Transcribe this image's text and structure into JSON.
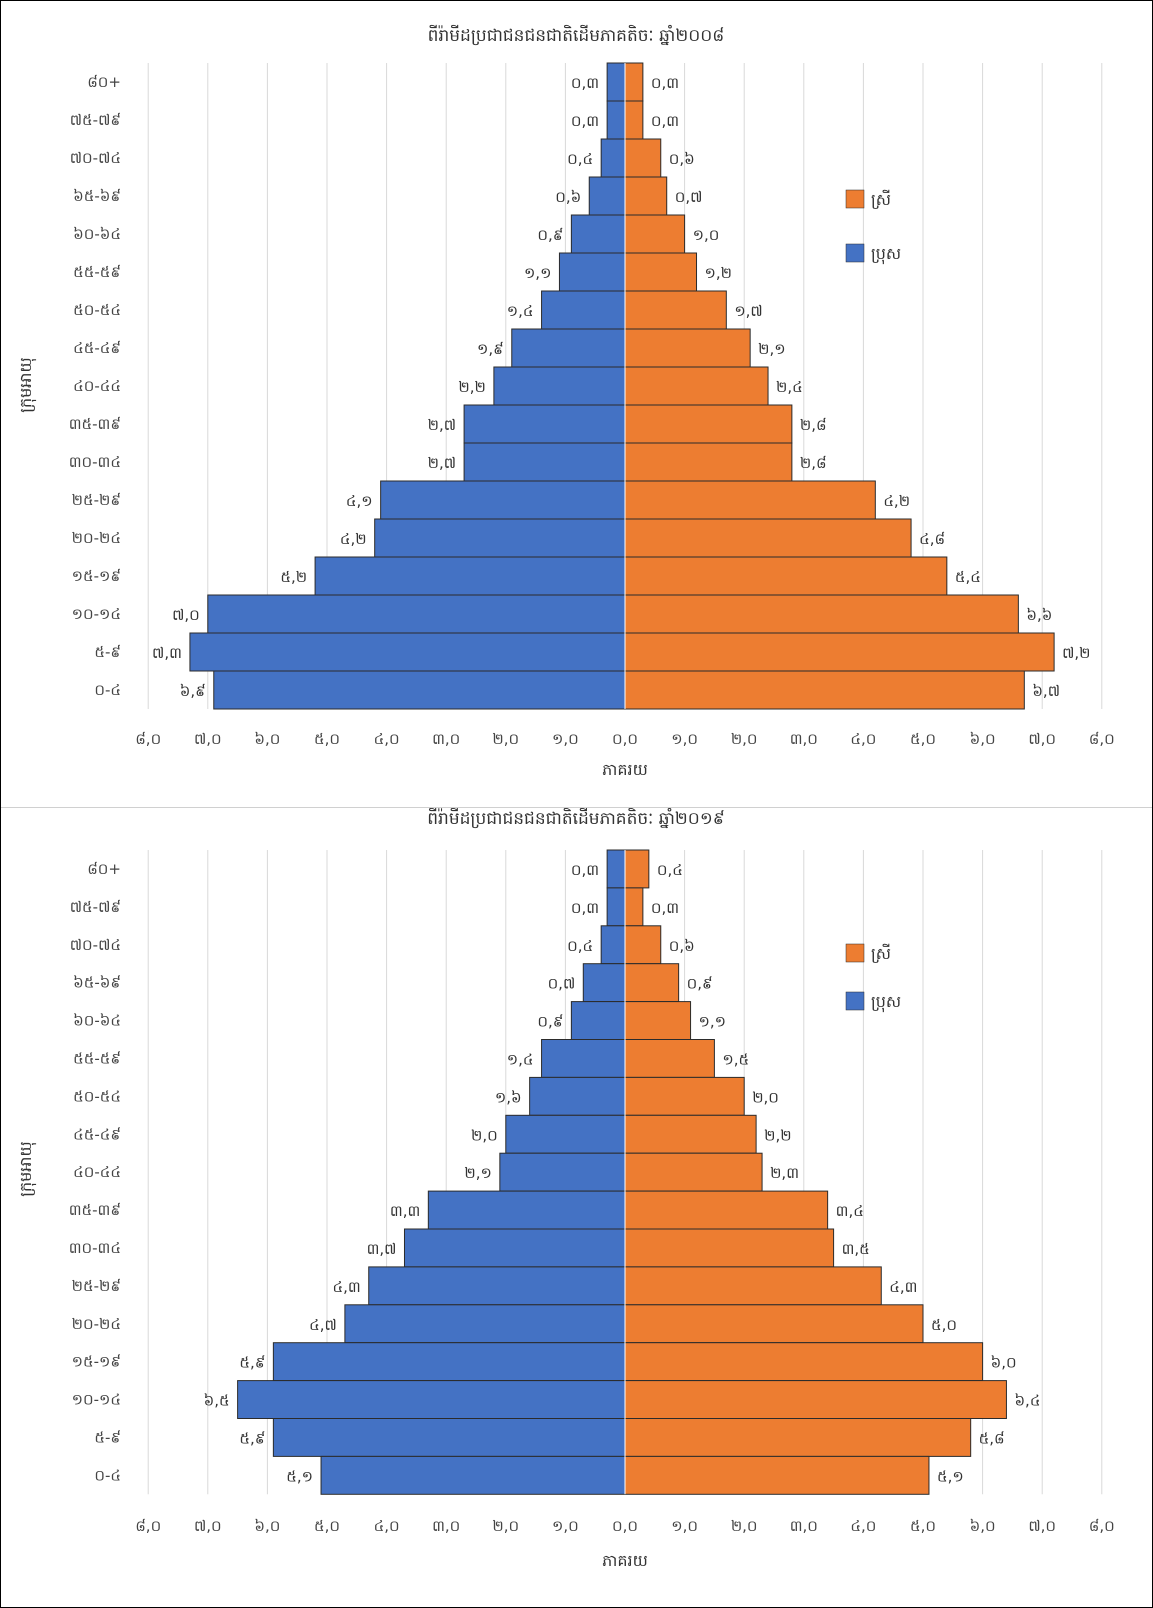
{
  "chart_data": [
    {
      "type": "bar",
      "orientation": "horizontal",
      "subtype": "population-pyramid",
      "title": "ពីរ៉ាមីដប្រជាជនជនជាតិដើមភាគតិចៈ ឆ្នាំ២០០៨",
      "xlabel": "ភាគរយ",
      "ylabel": "ក្រុមអាយុ",
      "categories": [
        "80+",
        "75-79",
        "70-74",
        "65-69",
        "60-64",
        "55-59",
        "50-54",
        "45-49",
        "40-44",
        "35-39",
        "30-34",
        "25-29",
        "20-24",
        "15-19",
        "10-14",
        "5-9",
        "0-4"
      ],
      "category_labels": [
        "៨០+",
        "៧៥-៧៩",
        "៧០-៧៤",
        "៦៥-៦៩",
        "៦០-៦៤",
        "៥៥-៥៩",
        "៥០-៥៤",
        "៤៥-៤៩",
        "៤០-៤៤",
        "៣៥-៣៩",
        "៣០-៣៤",
        "២៥-២៩",
        "២០-២៤",
        "១៥-១៩",
        "១០-១៤",
        "៥-៩",
        "០-៤"
      ],
      "series": [
        {
          "name": "ស្រី",
          "color": "#ED7D31",
          "side": "right",
          "values": [
            0.3,
            0.3,
            0.6,
            0.7,
            1.0,
            1.2,
            1.7,
            2.1,
            2.4,
            2.8,
            2.8,
            4.2,
            4.8,
            5.4,
            6.6,
            7.2,
            6.7
          ],
          "labels": [
            "០,៣",
            "០,៣",
            "០,៦",
            "០,៧",
            "១,០",
            "១,២",
            "១,៧",
            "២,១",
            "២,៤",
            "២,៨",
            "២,៨",
            "៤,២",
            "៤,៨",
            "៥,៤",
            "៦,៦",
            "៧,២",
            "៦,៧"
          ]
        },
        {
          "name": "ប្រុស",
          "color": "#4472C4",
          "side": "left",
          "values": [
            0.3,
            0.3,
            0.4,
            0.6,
            0.9,
            1.1,
            1.4,
            1.9,
            2.2,
            2.7,
            2.7,
            4.1,
            4.2,
            5.2,
            7.0,
            7.3,
            6.9
          ],
          "labels": [
            "០,៣",
            "០,៣",
            "០,៤",
            "០,៦",
            "០,៩",
            "១,១",
            "១,៤",
            "១,៩",
            "២,២",
            "២,៧",
            "២,៧",
            "៤,១",
            "៤,២",
            "៥,២",
            "៧,០",
            "៧,៣",
            "៦,៩"
          ]
        }
      ],
      "xlim": [
        -8,
        8
      ],
      "ticks": [
        -8,
        -7,
        -6,
        -5,
        -4,
        -3,
        -2,
        -1,
        0,
        1,
        2,
        3,
        4,
        5,
        6,
        7,
        8
      ],
      "tick_labels": [
        "៨,០",
        "៧,០",
        "៦,០",
        "៥,០",
        "៤,០",
        "៣,០",
        "២,០",
        "១,០",
        "០,០",
        "១,០",
        "២,០",
        "៣,០",
        "៤,០",
        "៥,០",
        "៦,០",
        "៧,០",
        "៨,០"
      ],
      "grid": true,
      "legend_position": "right"
    },
    {
      "type": "bar",
      "orientation": "horizontal",
      "subtype": "population-pyramid",
      "title": "ពីរ៉ាមីដប្រជាជនជនជាតិដើមភាគតិចៈ ឆ្នាំ២០១៩",
      "xlabel": "ភាគរយ",
      "ylabel": "ក្រុមអាយុ",
      "categories": [
        "80+",
        "75-79",
        "70-74",
        "65-69",
        "60-64",
        "55-59",
        "50-54",
        "45-49",
        "40-44",
        "35-39",
        "30-34",
        "25-29",
        "20-24",
        "15-19",
        "10-14",
        "5-9",
        "0-4"
      ],
      "category_labels": [
        "៨០+",
        "៧៥-៧៩",
        "៧០-៧៤",
        "៦៥-៦៩",
        "៦០-៦៤",
        "៥៥-៥៩",
        "៥០-៥៤",
        "៤៥-៤៩",
        "៤០-៤៤",
        "៣៥-៣៩",
        "៣០-៣៤",
        "២៥-២៩",
        "២០-២៤",
        "១៥-១៩",
        "១០-១៤",
        "៥-៩",
        "០-៤"
      ],
      "series": [
        {
          "name": "ស្រី",
          "color": "#ED7D31",
          "side": "right",
          "values": [
            0.4,
            0.3,
            0.6,
            0.9,
            1.1,
            1.5,
            2.0,
            2.2,
            2.3,
            3.4,
            3.5,
            4.3,
            5.0,
            6.0,
            6.4,
            5.8,
            5.1
          ],
          "labels": [
            "០,៤",
            "០,៣",
            "០,៦",
            "០,៩",
            "១,១",
            "១,៥",
            "២,០",
            "២,២",
            "២,៣",
            "៣,៤",
            "៣,៥",
            "៤,៣",
            "៥,០",
            "៦,០",
            "៦,៤",
            "៥,៨",
            "៥,១"
          ]
        },
        {
          "name": "ប្រុស",
          "color": "#4472C4",
          "side": "left",
          "values": [
            0.3,
            0.3,
            0.4,
            0.7,
            0.9,
            1.4,
            1.6,
            2.0,
            2.1,
            3.3,
            3.7,
            4.3,
            4.7,
            5.9,
            6.5,
            5.9,
            5.1
          ],
          "labels": [
            "០,៣",
            "០,៣",
            "០,៤",
            "០,៧",
            "០,៩",
            "១,៤",
            "១,៦",
            "២,០",
            "២,១",
            "៣,៣",
            "៣,៧",
            "៤,៣",
            "៤,៧",
            "៥,៩",
            "៦,៥",
            "៥,៩",
            "៥,១"
          ]
        }
      ],
      "xlim": [
        -8,
        8
      ],
      "ticks": [
        -8,
        -7,
        -6,
        -5,
        -4,
        -3,
        -2,
        -1,
        0,
        1,
        2,
        3,
        4,
        5,
        6,
        7,
        8
      ],
      "tick_labels": [
        "៨,០",
        "៧,០",
        "៦,០",
        "៥,០",
        "៤,០",
        "៣,០",
        "២,០",
        "១,០",
        "០,០",
        "១,០",
        "២,០",
        "៣,០",
        "៤,០",
        "៥,០",
        "៦,០",
        "៧,០",
        "៨,០"
      ],
      "grid": true,
      "legend_position": "right"
    }
  ]
}
